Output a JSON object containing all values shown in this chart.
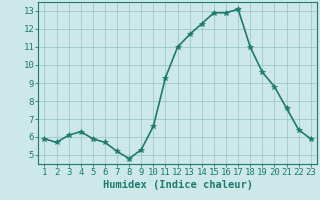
{
  "x": [
    1,
    2,
    3,
    4,
    5,
    6,
    7,
    8,
    9,
    10,
    11,
    12,
    13,
    14,
    15,
    16,
    17,
    18,
    19,
    20,
    21,
    22,
    23
  ],
  "y": [
    5.9,
    5.7,
    6.1,
    6.3,
    5.9,
    5.7,
    5.2,
    4.8,
    5.3,
    6.6,
    9.3,
    11.0,
    11.7,
    12.3,
    12.9,
    12.9,
    13.1,
    11.0,
    9.6,
    8.8,
    7.6,
    6.4,
    5.9
  ],
  "line_color": "#1e7a6e",
  "marker": "*",
  "marker_size": 4,
  "bg_color": "#cce8e8",
  "grid_color": "#9dc8c8",
  "xlabel": "Humidex (Indice chaleur)",
  "xlabel_fontsize": 7.5,
  "xlim": [
    0.5,
    23.5
  ],
  "ylim": [
    4.5,
    13.5
  ],
  "yticks": [
    5,
    6,
    7,
    8,
    9,
    10,
    11,
    12,
    13
  ],
  "xticks": [
    1,
    2,
    3,
    4,
    5,
    6,
    7,
    8,
    9,
    10,
    11,
    12,
    13,
    14,
    15,
    16,
    17,
    18,
    19,
    20,
    21,
    22,
    23
  ],
  "tick_fontsize": 6.5,
  "line_width": 1.2
}
